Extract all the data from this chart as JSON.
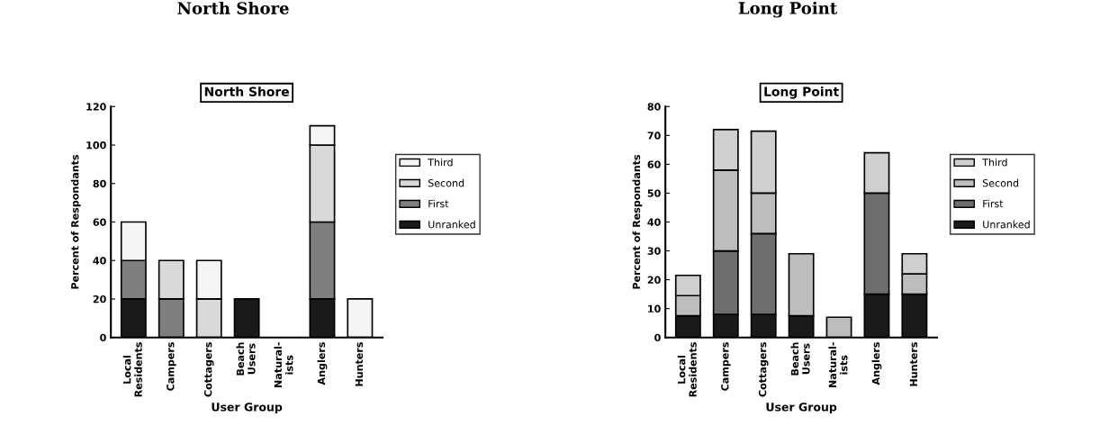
{
  "chart_data": [
    {
      "type": "bar",
      "stacked": true,
      "title": "North Shore",
      "subtitle": "North Shore",
      "xlabel": "User Group",
      "ylabel": "Percent of Respondants",
      "categories": [
        "Local\nResidents",
        "Campers",
        "Cottagers",
        "Beach\nUsers",
        "Natural-\nists",
        "Anglers",
        "Hunters"
      ],
      "ylim": [
        0,
        120
      ],
      "yticks": [
        0,
        20,
        40,
        60,
        80,
        100,
        120
      ],
      "grid": false,
      "legend": "right",
      "series": [
        {
          "name": "Unranked",
          "color": "#1a1a1a",
          "values": [
            20,
            0,
            0,
            20,
            0,
            20,
            0
          ]
        },
        {
          "name": "First",
          "color": "#7f7f7f",
          "values": [
            20,
            20,
            0,
            0,
            0,
            40,
            0
          ]
        },
        {
          "name": "Second",
          "color": "#d9d9d9",
          "values": [
            0,
            20,
            20,
            0,
            0,
            40,
            0
          ]
        },
        {
          "name": "Third",
          "color": "#f5f5f5",
          "values": [
            20,
            0,
            20,
            0,
            0,
            10,
            20
          ]
        }
      ]
    },
    {
      "type": "bar",
      "stacked": true,
      "title": "Long Point",
      "subtitle": "Long Point",
      "xlabel": "User Group",
      "ylabel": "Percent of Respondants",
      "categories": [
        "Local\nResidents",
        "Campers",
        "Cottagers",
        "Beach\nUsers",
        "Natural-\nists",
        "Anglers",
        "Hunters"
      ],
      "ylim": [
        0,
        80
      ],
      "yticks": [
        0,
        10,
        20,
        30,
        40,
        50,
        60,
        70,
        80
      ],
      "grid": false,
      "legend": "right",
      "series": [
        {
          "name": "Unranked",
          "color": "#1a1a1a",
          "values": [
            7.5,
            8,
            8,
            7.5,
            0,
            15,
            15
          ]
        },
        {
          "name": "First",
          "color": "#6e6e6e",
          "values": [
            0,
            22,
            28,
            0,
            0,
            35,
            0
          ]
        },
        {
          "name": "Second",
          "color": "#bdbdbd",
          "values": [
            7,
            28,
            14,
            21.5,
            7,
            0,
            7
          ]
        },
        {
          "name": "Third",
          "color": "#cfcfcf",
          "values": [
            7,
            14,
            21.5,
            0,
            0,
            14,
            7
          ]
        }
      ]
    }
  ]
}
